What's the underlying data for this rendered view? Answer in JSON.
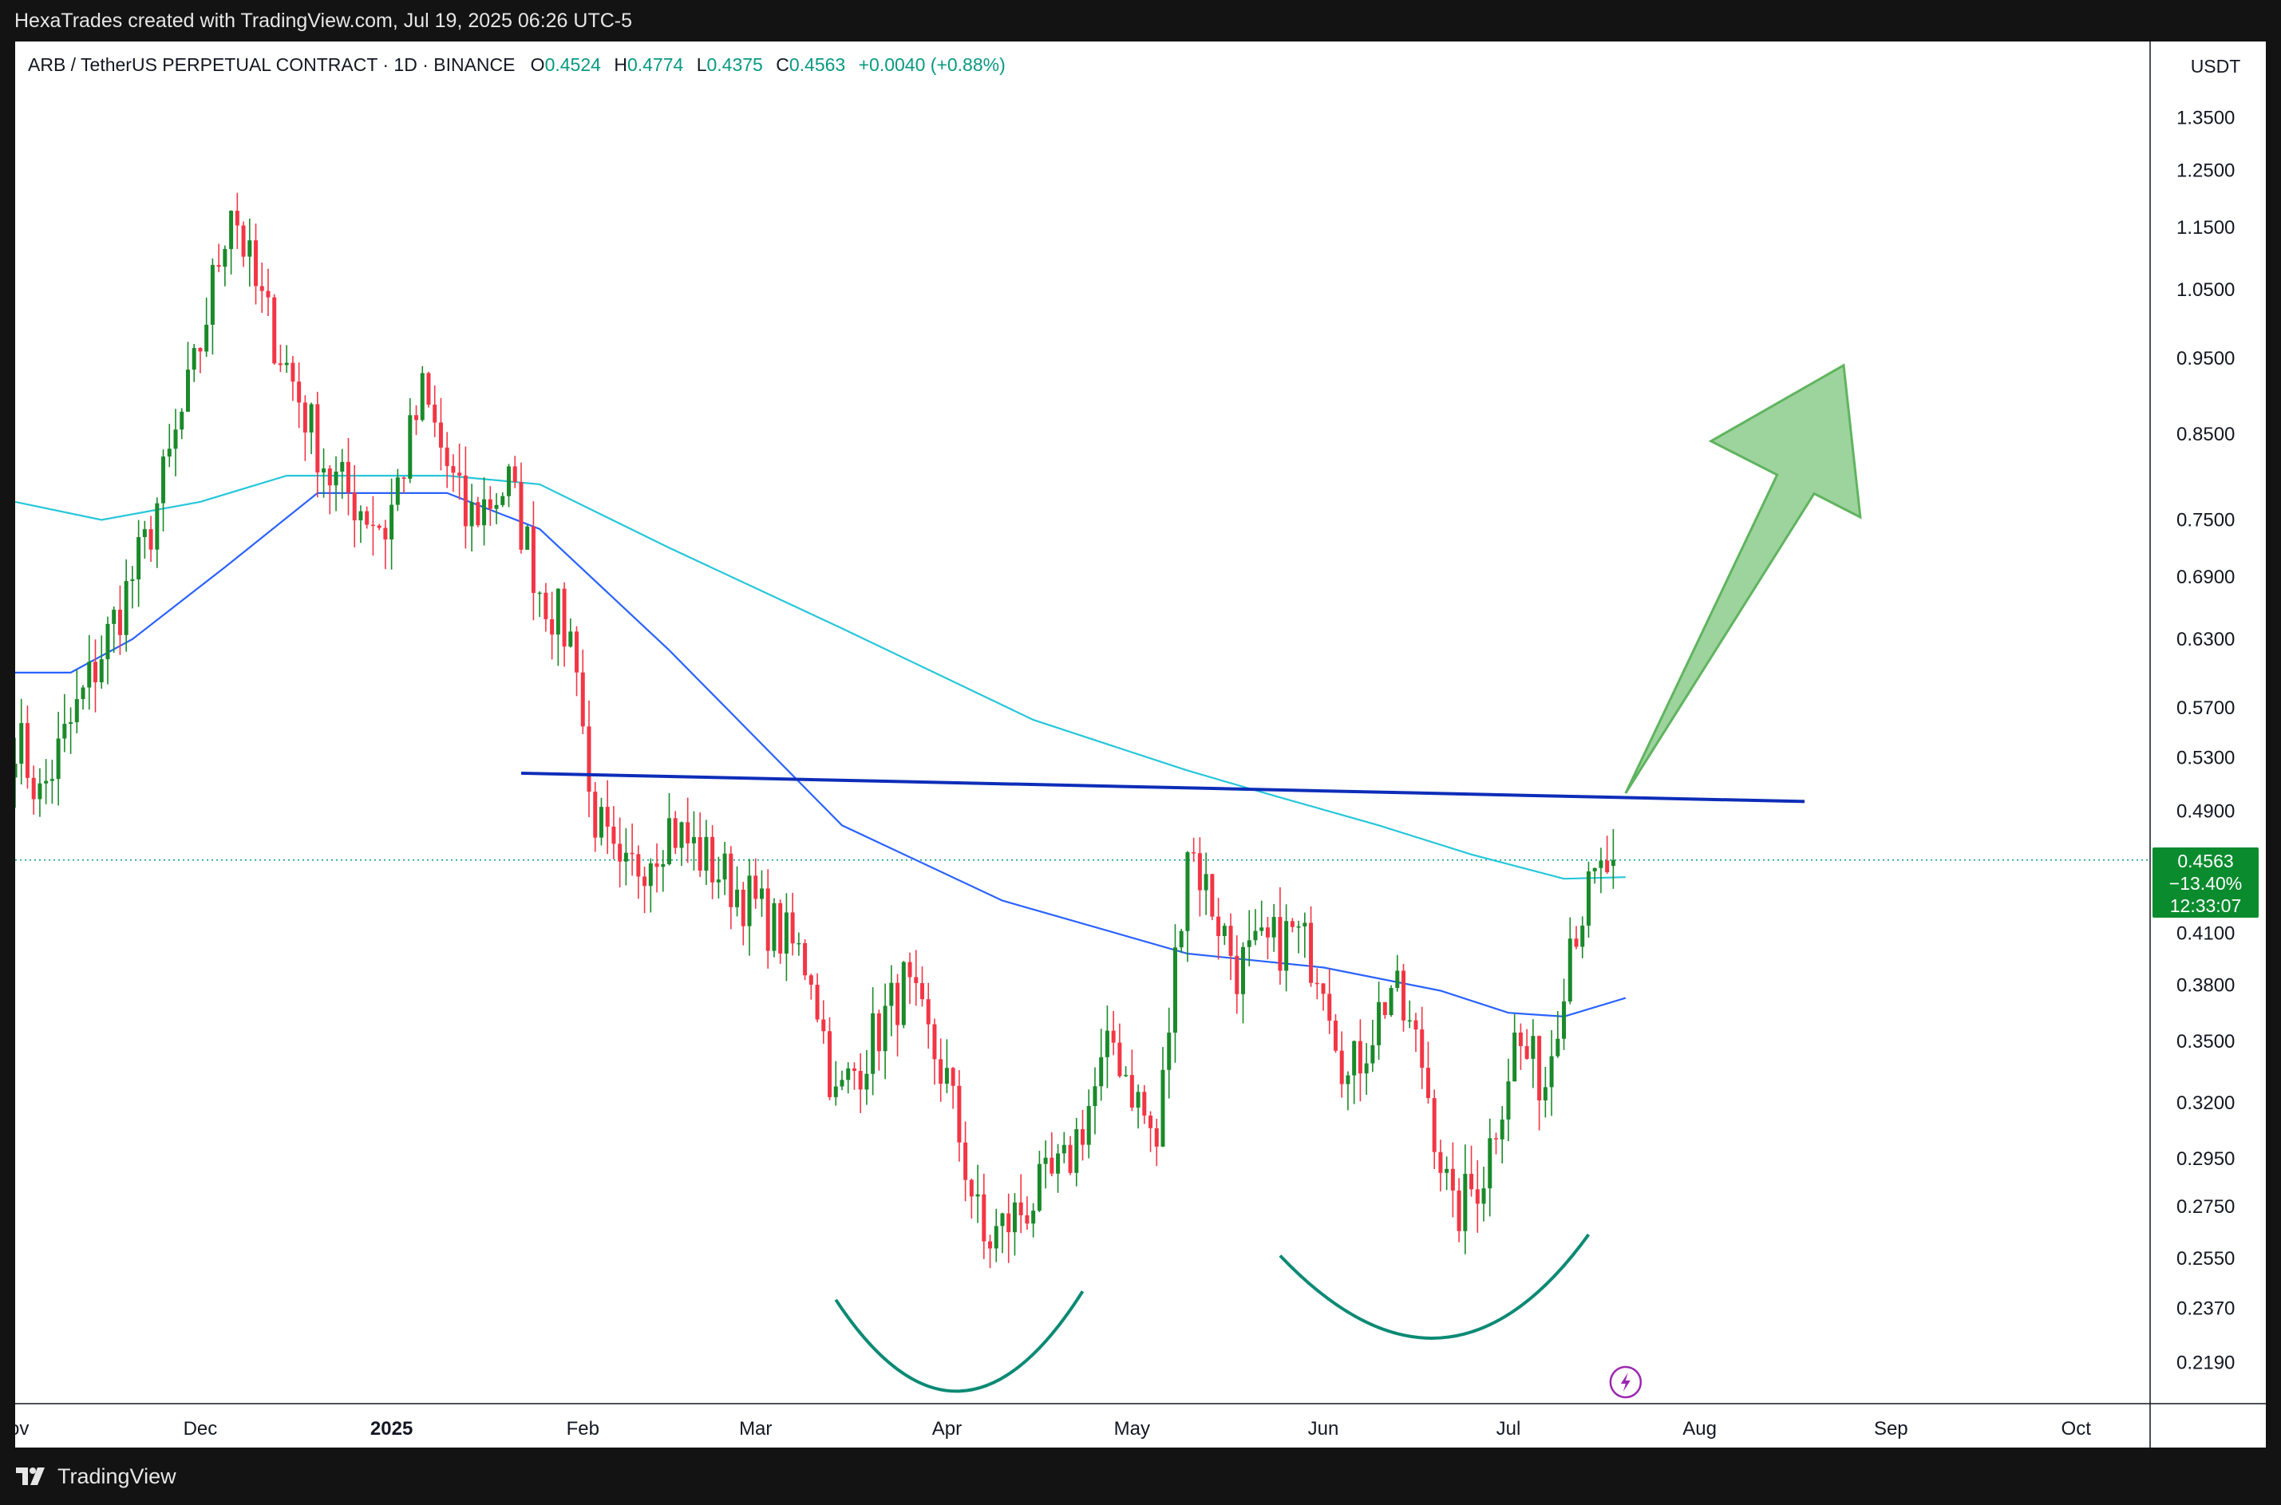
{
  "header": {
    "caption": "HexaTrades created with TradingView.com, Jul 19, 2025 06:26 UTC-5"
  },
  "legend": {
    "symbol": "ARB / TetherUS PERPETUAL CONTRACT · 1D · BINANCE",
    "open_label": "O",
    "open": "0.4524",
    "high_label": "H",
    "high": "0.4774",
    "low_label": "L",
    "low": "0.4375",
    "close_label": "C",
    "close": "0.4563",
    "change": "+0.0040 (+0.88%)"
  },
  "price_axis": {
    "currency": "USDT",
    "ticks": [
      "1.3500",
      "1.2500",
      "1.1500",
      "1.0500",
      "0.9500",
      "0.8500",
      "0.7500",
      "0.6900",
      "0.6300",
      "0.5700",
      "0.5300",
      "0.4900",
      "0.4100",
      "0.3800",
      "0.3500",
      "0.3200",
      "0.2950",
      "0.2750",
      "0.2550",
      "0.2370",
      "0.2190"
    ]
  },
  "price_badge": {
    "price": "0.4563",
    "change_pct": "−13.40%",
    "countdown": "12:33:07"
  },
  "time_axis": {
    "labels": [
      "ov",
      "Dec",
      "2025",
      "Feb",
      "Mar",
      "Apr",
      "May",
      "Jun",
      "Jul",
      "Aug",
      "Sep",
      "Oct"
    ]
  },
  "footer": {
    "brand": "TradingView"
  },
  "colors": {
    "up": "#089981",
    "up_candle": "#1a8a2a",
    "down": "#f23645",
    "ma_fast": "#2962ff",
    "ma_slow": "#26c6da",
    "neckline": "#0d2db8",
    "arc": "#0b8a74",
    "arrow": "#7cc47c",
    "badge": "#0a8b2e"
  },
  "chart_data": {
    "type": "candlestick",
    "scale": "log",
    "ylim": [
      0.205,
      1.44
    ],
    "x_range": [
      "2024-11-01",
      "2025-10-13"
    ],
    "last_price": 0.4563,
    "candle_anchors": [
      [
        "2024-11-01",
        0.55
      ],
      [
        "2024-11-05",
        0.5
      ],
      [
        "2024-11-12",
        0.58
      ],
      [
        "2024-11-22",
        0.72
      ],
      [
        "2024-11-30",
        0.93
      ],
      [
        "2024-12-06",
        1.2
      ],
      [
        "2024-12-10",
        1.05
      ],
      [
        "2024-12-14",
        0.96
      ],
      [
        "2024-12-22",
        0.8
      ],
      [
        "2024-12-31",
        0.74
      ],
      [
        "2025-01-06",
        0.9
      ],
      [
        "2025-01-13",
        0.75
      ],
      [
        "2025-01-20",
        0.79
      ],
      [
        "2025-01-25",
        0.68
      ],
      [
        "2025-01-31",
        0.62
      ],
      [
        "2025-02-02",
        0.5
      ],
      [
        "2025-02-07",
        0.44
      ],
      [
        "2025-02-15",
        0.48
      ],
      [
        "2025-02-28",
        0.43
      ],
      [
        "2025-03-10",
        0.39
      ],
      [
        "2025-03-14",
        0.32
      ],
      [
        "2025-03-25",
        0.38
      ],
      [
        "2025-04-01",
        0.33
      ],
      [
        "2025-04-07",
        0.26
      ],
      [
        "2025-04-20",
        0.29
      ],
      [
        "2025-04-28",
        0.35
      ],
      [
        "2025-05-05",
        0.3
      ],
      [
        "2025-05-10",
        0.47
      ],
      [
        "2025-05-18",
        0.39
      ],
      [
        "2025-05-27",
        0.41
      ],
      [
        "2025-06-01",
        0.39
      ],
      [
        "2025-06-05",
        0.33
      ],
      [
        "2025-06-12",
        0.38
      ],
      [
        "2025-06-17",
        0.34
      ],
      [
        "2025-06-22",
        0.27
      ],
      [
        "2025-06-27",
        0.29
      ],
      [
        "2025-07-02",
        0.35
      ],
      [
        "2025-07-07",
        0.33
      ],
      [
        "2025-07-11",
        0.41
      ],
      [
        "2025-07-15",
        0.44
      ],
      [
        "2025-07-18",
        0.4563
      ]
    ],
    "ma_fast_points": [
      [
        "2024-11-01",
        0.6
      ],
      [
        "2024-11-10",
        0.6
      ],
      [
        "2024-11-20",
        0.63
      ],
      [
        "2024-12-05",
        0.7
      ],
      [
        "2024-12-20",
        0.78
      ],
      [
        "2025-01-10",
        0.78
      ],
      [
        "2025-01-25",
        0.74
      ],
      [
        "2025-02-15",
        0.62
      ],
      [
        "2025-03-15",
        0.48
      ],
      [
        "2025-04-10",
        0.43
      ],
      [
        "2025-05-10",
        0.398
      ],
      [
        "2025-06-01",
        0.39
      ],
      [
        "2025-06-20",
        0.377
      ],
      [
        "2025-07-01",
        0.365
      ],
      [
        "2025-07-10",
        0.363
      ],
      [
        "2025-07-20",
        0.373
      ]
    ],
    "ma_slow_points": [
      [
        "2024-11-01",
        0.77
      ],
      [
        "2024-11-15",
        0.75
      ],
      [
        "2024-12-01",
        0.77
      ],
      [
        "2024-12-15",
        0.8
      ],
      [
        "2025-01-10",
        0.8
      ],
      [
        "2025-01-25",
        0.79
      ],
      [
        "2025-02-15",
        0.72
      ],
      [
        "2025-03-15",
        0.64
      ],
      [
        "2025-04-15",
        0.56
      ],
      [
        "2025-05-10",
        0.52
      ],
      [
        "2025-05-25",
        0.5
      ],
      [
        "2025-06-10",
        0.48
      ],
      [
        "2025-06-25",
        0.46
      ],
      [
        "2025-07-10",
        0.444
      ],
      [
        "2025-07-20",
        0.445
      ]
    ],
    "annotations": {
      "neckline": [
        [
          "2025-01-22",
          0.518
        ],
        [
          "2025-08-18",
          0.497
        ]
      ],
      "arc_left": [
        [
          "2025-03-14",
          0.24
        ],
        [
          "2025-04-03",
          0.21
        ],
        [
          "2025-04-23",
          0.243
        ]
      ],
      "arc_right": [
        [
          "2025-05-25",
          0.256
        ],
        [
          "2025-06-20",
          0.227
        ],
        [
          "2025-07-14",
          0.264
        ]
      ],
      "arrow": {
        "tail": [
          "2025-07-20",
          0.503
        ],
        "head": [
          "2025-08-22",
          0.94
        ]
      }
    }
  }
}
